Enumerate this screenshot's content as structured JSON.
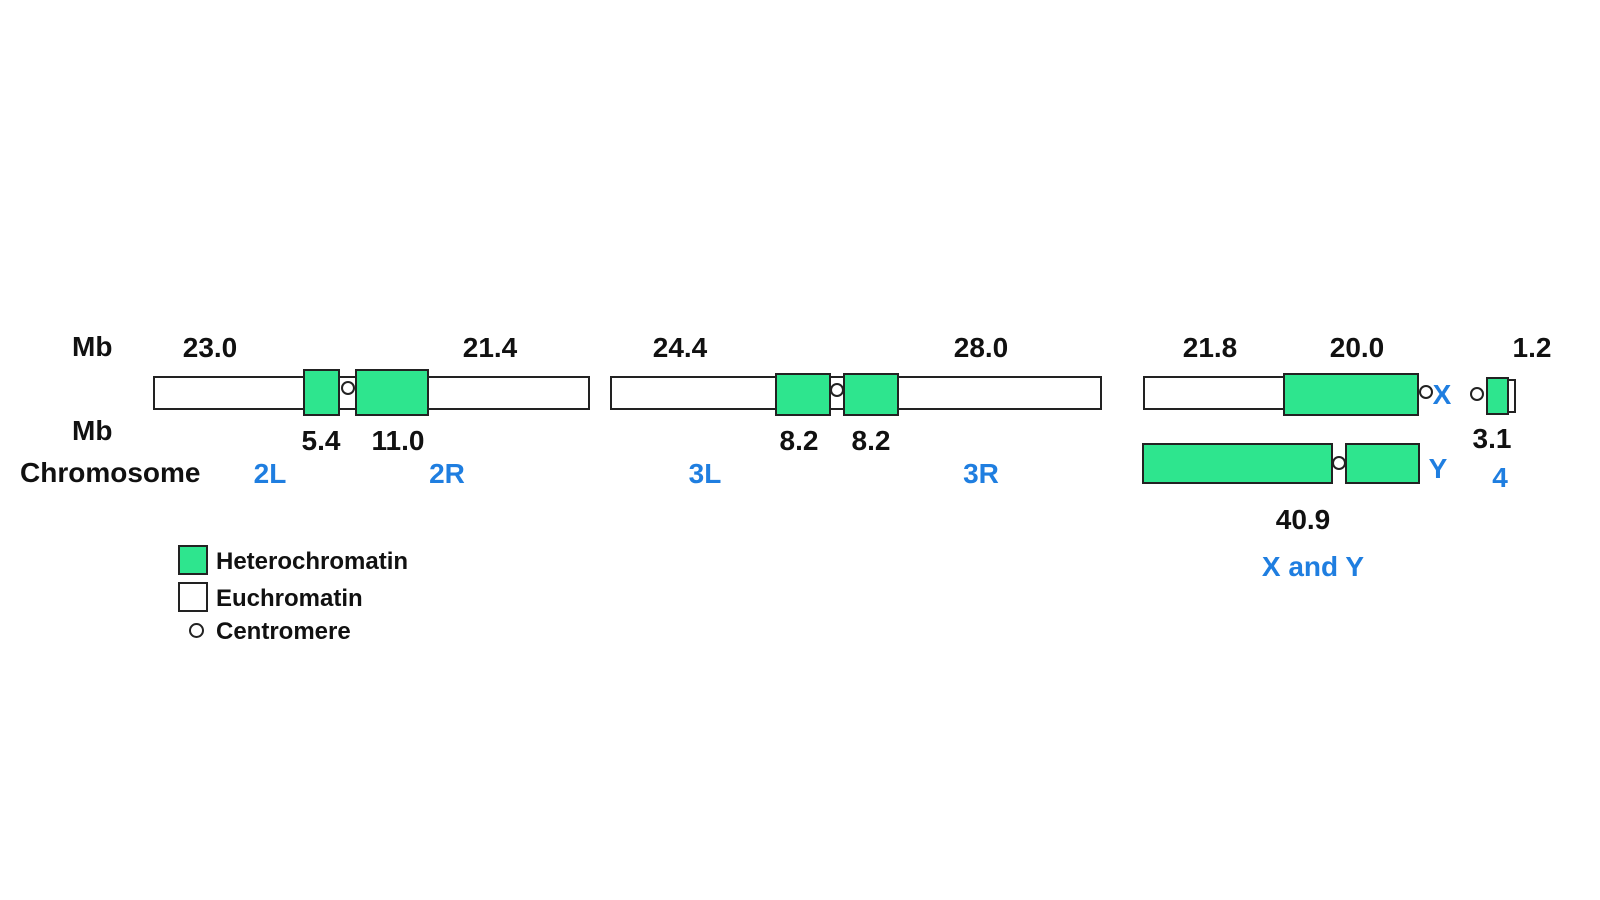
{
  "row_labels": {
    "mb_top": "Mb",
    "mb_bottom": "Mb",
    "chromosome": "Chromosome"
  },
  "sizes": {
    "top": {
      "c2L": "23.0",
      "c2R": "21.4",
      "c3L": "24.4",
      "c3R": "28.0",
      "cX_eu": "21.8",
      "cX_het": "20.0",
      "c4_eu": "1.2"
    },
    "bottom": {
      "c2L_het": "5.4",
      "c2R_het": "11.0",
      "c3L_het": "8.2",
      "c3R_het": "8.2",
      "c4_het": "3.1",
      "cY": "40.9"
    }
  },
  "arm_names": {
    "a2L": "2L",
    "a2R": "2R",
    "a3L": "3L",
    "a3R": "3R",
    "aX": "X",
    "aY": "Y",
    "a4": "4",
    "xy": "X and Y"
  },
  "legend": {
    "heterochromatin": "Heterochromatin",
    "euchromatin": "Euchromatin",
    "centromere": "Centromere"
  },
  "colors": {
    "heterochromatin": "#2ee58e",
    "euchromatin": "#ffffff",
    "outline": "#222222",
    "arm_label": "#1f7ee0"
  }
}
